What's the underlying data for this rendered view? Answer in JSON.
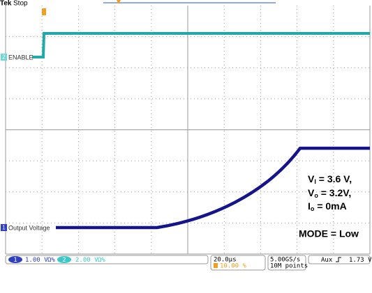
{
  "header": {
    "brand": "Tek",
    "status": "Stop"
  },
  "channels": {
    "ch2_label": "ENABLE",
    "ch1_label": "Output Voltage",
    "ch1_marker": "1",
    "ch2_marker": "2"
  },
  "annotations": {
    "vin": {
      "main": "V",
      "sub": "I",
      "rest": "  = 3.6 V,"
    },
    "vout": {
      "main": "V",
      "sub": "o",
      "rest": " = 3.2V,"
    },
    "iout": {
      "main": "I",
      "sub": "o",
      "rest": " = 0mA"
    },
    "mode": "MODE = Low"
  },
  "status_bar": {
    "ch1_scale": "1.00 V",
    "ch1_coupling": "Ω%",
    "ch2_scale": "2.00 V",
    "ch2_coupling": "Ω%",
    "timebase": "20.0µs",
    "trigger_pos": "10.00 %",
    "sample_rate": "5.00GS/s",
    "record": "10M points",
    "trigger_source": "Aux",
    "trigger_level": "1.73 V"
  }
}
